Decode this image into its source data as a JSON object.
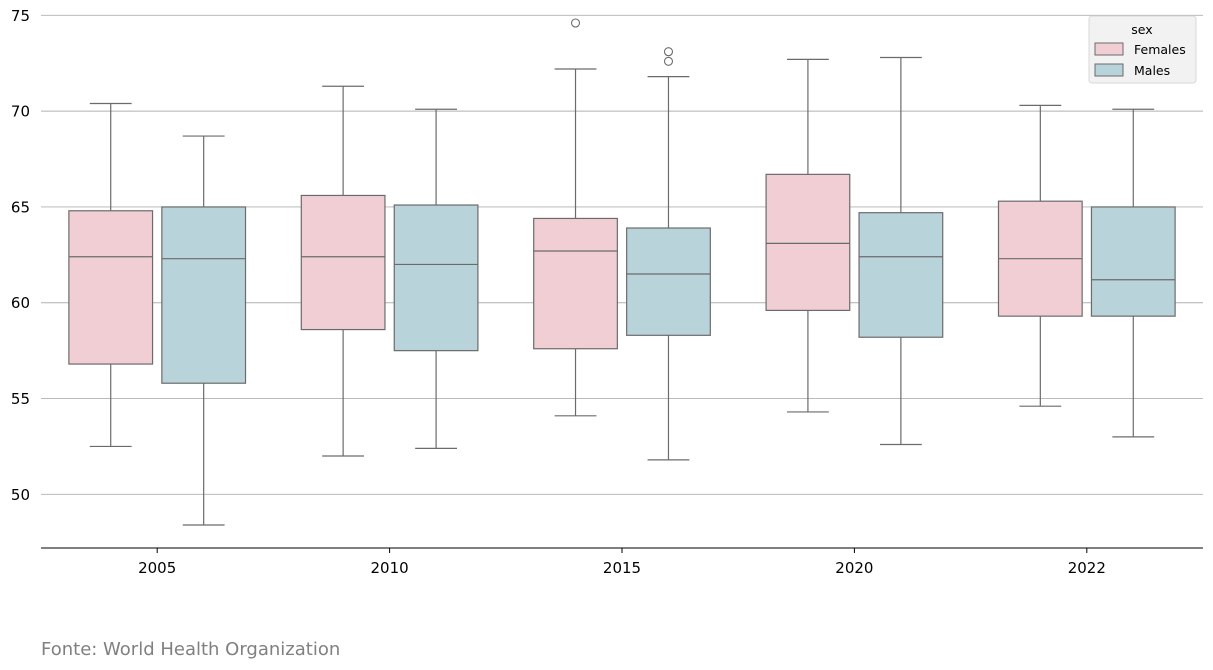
{
  "chart_data": {
    "type": "boxplot",
    "title": "",
    "xlabel": "",
    "ylabel": "",
    "categories": [
      "2005",
      "2010",
      "2015",
      "2020",
      "2022"
    ],
    "ylim": [
      47.2,
      75.8
    ],
    "yticks": [
      50,
      55,
      60,
      65,
      70,
      75
    ],
    "grid": "y",
    "legend": {
      "title": "sex",
      "position": "top-right"
    },
    "series": [
      {
        "name": "Females",
        "color": "#f0ced4",
        "boxes": [
          {
            "category": "2005",
            "whisker_low": 52.5,
            "q1": 56.8,
            "median": 62.4,
            "q3": 64.8,
            "whisker_high": 70.4,
            "outliers": []
          },
          {
            "category": "2010",
            "whisker_low": 52.0,
            "q1": 58.6,
            "median": 62.4,
            "q3": 65.6,
            "whisker_high": 71.3,
            "outliers": []
          },
          {
            "category": "2015",
            "whisker_low": 54.1,
            "q1": 57.6,
            "median": 62.7,
            "q3": 64.4,
            "whisker_high": 72.2,
            "outliers": [
              74.6
            ]
          },
          {
            "category": "2020",
            "whisker_low": 54.3,
            "q1": 59.6,
            "median": 63.1,
            "q3": 66.7,
            "whisker_high": 72.7,
            "outliers": []
          },
          {
            "category": "2022",
            "whisker_low": 54.6,
            "q1": 59.3,
            "median": 62.3,
            "q3": 65.3,
            "whisker_high": 70.3,
            "outliers": []
          }
        ]
      },
      {
        "name": "Males",
        "color": "#b9d3da",
        "boxes": [
          {
            "category": "2005",
            "whisker_low": 48.4,
            "q1": 55.8,
            "median": 62.3,
            "q3": 65.0,
            "whisker_high": 68.7,
            "outliers": []
          },
          {
            "category": "2010",
            "whisker_low": 52.4,
            "q1": 57.5,
            "median": 62.0,
            "q3": 65.1,
            "whisker_high": 70.1,
            "outliers": []
          },
          {
            "category": "2015",
            "whisker_low": 51.8,
            "q1": 58.3,
            "median": 61.5,
            "q3": 63.9,
            "whisker_high": 71.8,
            "outliers": [
              72.6,
              73.1
            ]
          },
          {
            "category": "2020",
            "whisker_low": 52.6,
            "q1": 58.2,
            "median": 62.4,
            "q3": 64.7,
            "whisker_high": 72.8,
            "outliers": []
          },
          {
            "category": "2022",
            "whisker_low": 53.0,
            "q1": 59.3,
            "median": 61.2,
            "q3": 65.0,
            "whisker_high": 70.1,
            "outliers": []
          }
        ]
      }
    ]
  },
  "footer": {
    "source_note": "Fonte: World Health Organization"
  }
}
